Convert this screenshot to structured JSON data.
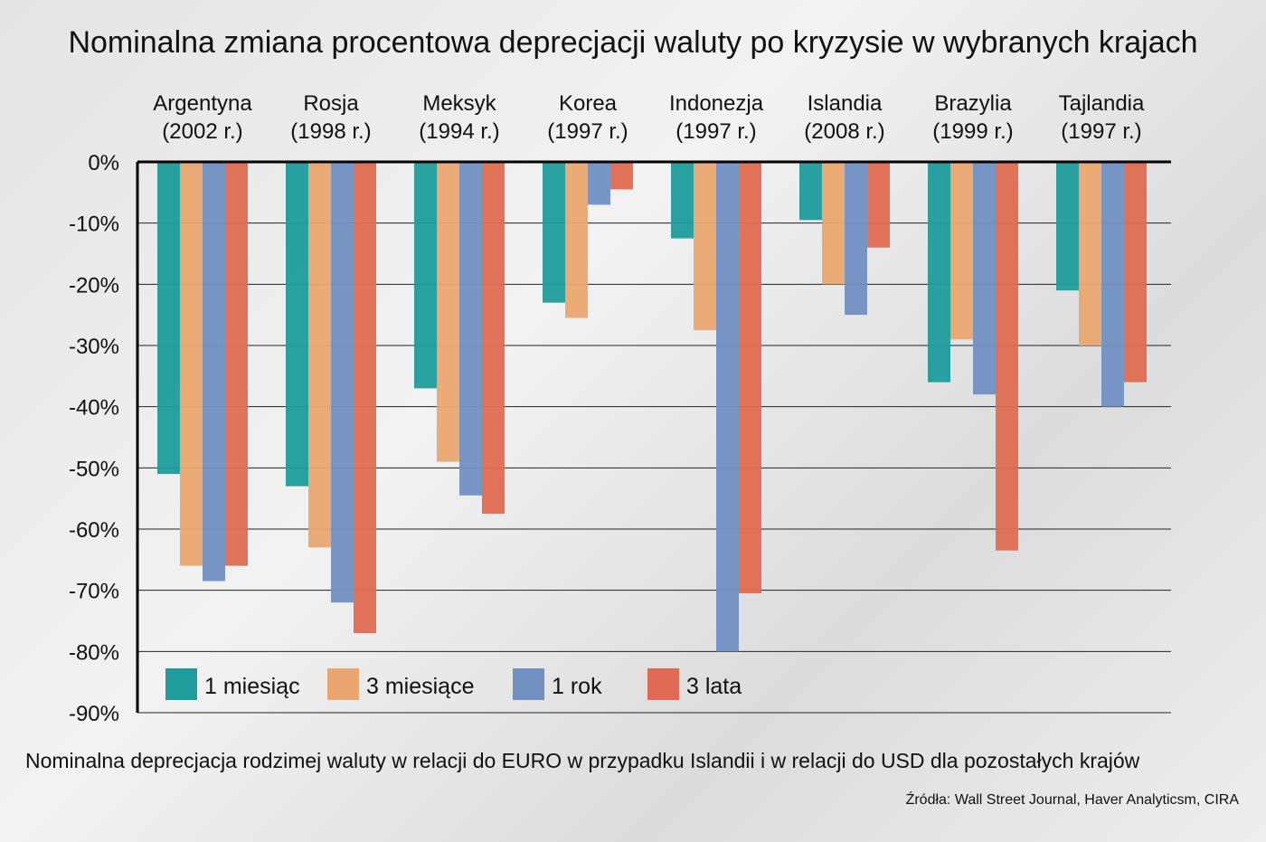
{
  "chart_data": {
    "type": "bar",
    "title": "Nominalna zmiana procentowa deprecjacji waluty po kryzysie w wybranych krajach",
    "subtitle": "Nominalna deprecjacja rodzimej waluty w relacji do EURO w przypadku Islandii i w relacji do USD dla pozostałych krajów",
    "source": "Źródła: Wall Street Journal, Haver Analyticsm, CIRA",
    "categories": [
      [
        "Argentyna",
        "(2002 r.)"
      ],
      [
        "Rosja",
        "(1998 r.)"
      ],
      [
        "Meksyk",
        "(1994 r.)"
      ],
      [
        "Korea",
        "(1997 r.)"
      ],
      [
        "Indonezja",
        "(1997 r.)"
      ],
      [
        "Islandia",
        "(2008 r.)"
      ],
      [
        "Brazylia",
        "(1999 r.)"
      ],
      [
        "Tajlandia",
        "(1997 r.)"
      ]
    ],
    "ylim": [
      -90,
      0
    ],
    "yticks": [
      "0%",
      "-10%",
      "-20%",
      "-30%",
      "-40%",
      "-50%",
      "-60%",
      "-70%",
      "-80%",
      "-90%"
    ],
    "grid": true,
    "legend_position": "bottom-left",
    "series": [
      {
        "name": "1 miesiąc",
        "color": "#1f9c9c",
        "values": [
          -51,
          -53,
          -37,
          -23,
          -12.5,
          -9.5,
          -36,
          -21
        ]
      },
      {
        "name": "3 miesiące",
        "color": "#e9a670",
        "values": [
          -66,
          -63,
          -49,
          -25.5,
          -27.5,
          -20,
          -29,
          -30
        ]
      },
      {
        "name": "1 rok",
        "color": "#7090c2",
        "values": [
          -68.5,
          -72,
          -54.5,
          -7,
          -80,
          -25,
          -38,
          -40
        ]
      },
      {
        "name": "3 lata",
        "color": "#e06b52",
        "values": [
          -66,
          -77,
          -57.5,
          -4.5,
          -70.5,
          -14,
          -63.5,
          -36
        ]
      }
    ]
  }
}
